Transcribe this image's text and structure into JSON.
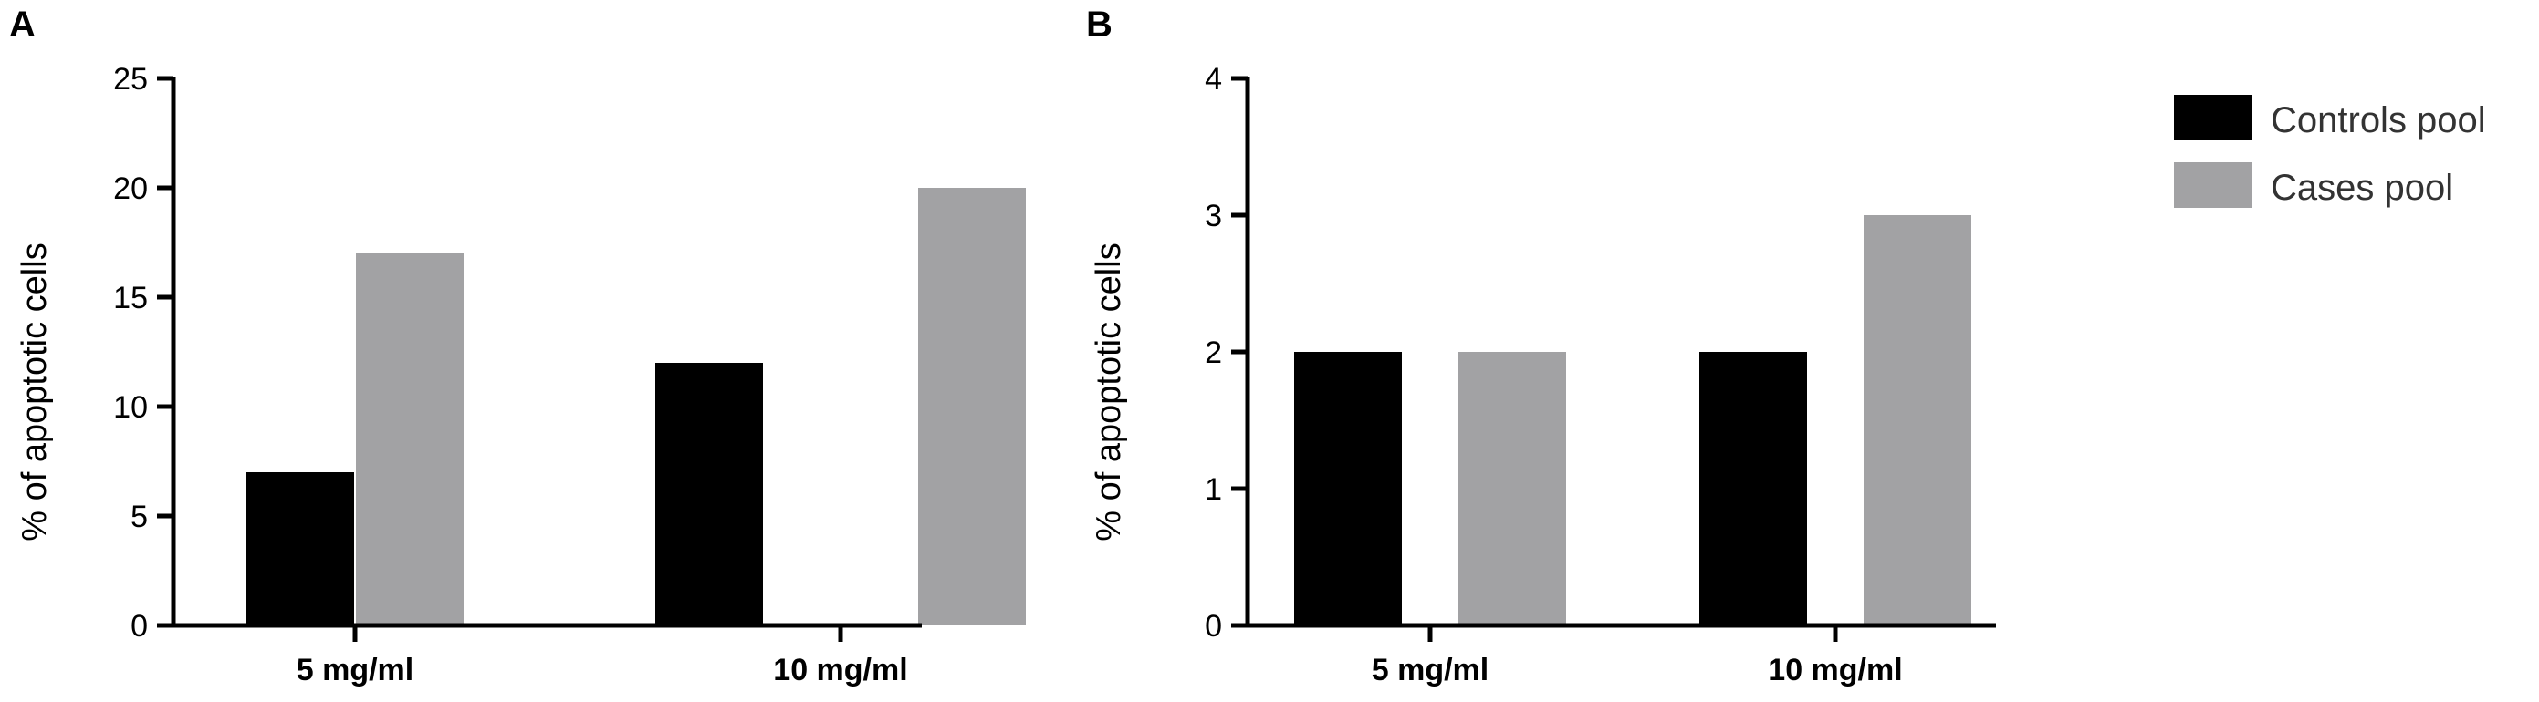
{
  "colors": {
    "controls": "#000000",
    "cases": "#a2a2a4"
  },
  "legend": {
    "items": [
      {
        "label": "Controls pool",
        "color_key": "controls"
      },
      {
        "label": "Cases pool",
        "color_key": "cases"
      }
    ]
  },
  "chart_data": [
    {
      "type": "bar",
      "panel": "A",
      "title": "",
      "xlabel": "",
      "ylabel": "% of apoptotic cells",
      "categories": [
        "5 mg/ml",
        "10 mg/ml"
      ],
      "series": [
        {
          "name": "Controls pool",
          "values": [
            7,
            12
          ]
        },
        {
          "name": "Cases pool",
          "values": [
            17,
            20
          ]
        }
      ],
      "ylim": [
        0,
        25
      ],
      "yticks": [
        0,
        5,
        10,
        15,
        20,
        25
      ],
      "grid": false,
      "legend": "right"
    },
    {
      "type": "bar",
      "panel": "B",
      "title": "",
      "xlabel": "",
      "ylabel": "% of apoptotic cells",
      "categories": [
        "5 mg/ml",
        "10 mg/ml"
      ],
      "series": [
        {
          "name": "Controls pool",
          "values": [
            2,
            2
          ]
        },
        {
          "name": "Cases pool",
          "values": [
            2,
            3
          ]
        }
      ],
      "ylim": [
        0,
        4
      ],
      "yticks": [
        0,
        1,
        2,
        3,
        4
      ],
      "grid": false,
      "legend": "right"
    }
  ]
}
